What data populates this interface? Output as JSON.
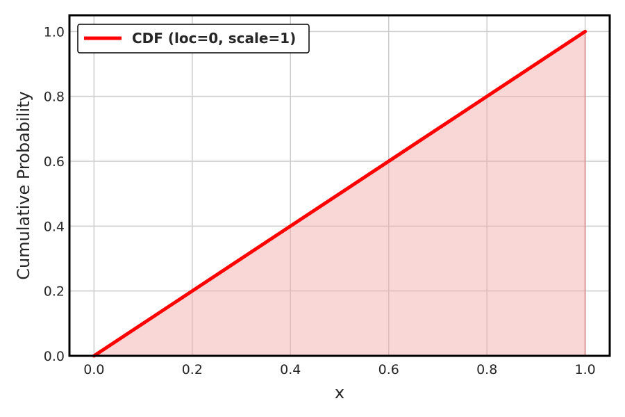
{
  "chart_data": {
    "type": "line",
    "xlabel": "x",
    "ylabel": "Cumulative Probability",
    "xlim": [
      -0.05,
      1.05
    ],
    "ylim": [
      0.0,
      1.05
    ],
    "x_ticks": [
      0.0,
      0.2,
      0.4,
      0.6,
      0.8,
      1.0
    ],
    "x_tick_labels": [
      "0.0",
      "0.2",
      "0.4",
      "0.6",
      "0.8",
      "1.0"
    ],
    "y_ticks": [
      0.0,
      0.2,
      0.4,
      0.6,
      0.8,
      1.0
    ],
    "y_tick_labels": [
      "0.0",
      "0.2",
      "0.4",
      "0.6",
      "0.8",
      "1.0"
    ],
    "grid": true,
    "legend_position": "top-left",
    "series": [
      {
        "name": "CDF (loc=0, scale=1)",
        "color": "#ff0000",
        "fill": true,
        "fill_color": "#f4a6a6",
        "x": [
          0.0,
          0.2,
          0.4,
          0.6,
          0.8,
          1.0
        ],
        "y": [
          0.0,
          0.2,
          0.4,
          0.6,
          0.8,
          1.0
        ]
      }
    ]
  }
}
